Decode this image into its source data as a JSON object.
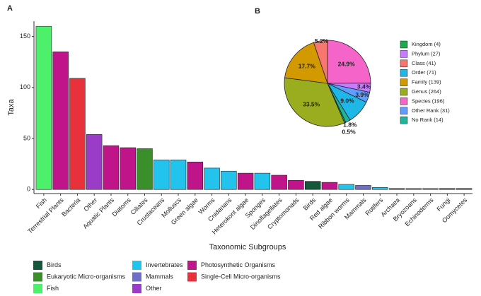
{
  "chart_data": [
    {
      "type": "bar",
      "panel_label": "A",
      "x_label": "Taxonomic Subgroups",
      "y_label": "Taxa",
      "categories": [
        "Fish",
        "Terrestrial Plants",
        "Bacteria",
        "Other",
        "Aquatic Plants",
        "Diatoms",
        "Ciliates",
        "Crustaceans",
        "Molluscs",
        "Green algae",
        "Worms",
        "Cnidarians",
        "Heterokont algae",
        "Sponges",
        "Dinoflagellates",
        "Cryptomonads",
        "Birds",
        "Red algae",
        "Ribbon worms",
        "Mammals",
        "Rotifers",
        "Archaea",
        "Bryozoans",
        "Echinoderms",
        "Fungi",
        "Oomycetes"
      ],
      "series": [
        {
          "name": "Birds",
          "color": "#14573a",
          "values": [
            null,
            null,
            null,
            null,
            null,
            null,
            null,
            null,
            null,
            null,
            null,
            null,
            null,
            null,
            null,
            null,
            8,
            null,
            null,
            null,
            null,
            null,
            null,
            null,
            null,
            null
          ]
        },
        {
          "name": "Eukaryotic Micro-organisms",
          "color": "#3a8f2a",
          "values": [
            null,
            null,
            null,
            null,
            null,
            null,
            40,
            null,
            null,
            null,
            null,
            null,
            null,
            null,
            null,
            null,
            null,
            null,
            null,
            null,
            null,
            null,
            null,
            null,
            null,
            null
          ]
        },
        {
          "name": "Fish",
          "color": "#4cf06a",
          "values": [
            160,
            null,
            null,
            null,
            null,
            null,
            null,
            null,
            null,
            null,
            null,
            null,
            null,
            null,
            null,
            null,
            null,
            null,
            null,
            null,
            null,
            null,
            null,
            null,
            null,
            null
          ]
        },
        {
          "name": "Invertebrates",
          "color": "#22c4ee",
          "values": [
            null,
            null,
            null,
            null,
            null,
            null,
            null,
            29,
            29,
            null,
            21,
            18,
            null,
            16,
            null,
            null,
            null,
            null,
            5,
            null,
            2,
            null,
            1,
            1,
            null,
            null
          ]
        },
        {
          "name": "Mammals",
          "color": "#6f6fc8",
          "values": [
            null,
            null,
            null,
            null,
            null,
            null,
            null,
            null,
            null,
            null,
            null,
            null,
            null,
            null,
            null,
            null,
            null,
            null,
            null,
            4,
            null,
            null,
            null,
            null,
            null,
            null
          ]
        },
        {
          "name": "Other",
          "color": "#9b3cc8",
          "values": [
            null,
            null,
            null,
            54,
            null,
            null,
            null,
            null,
            null,
            null,
            null,
            null,
            null,
            null,
            null,
            null,
            null,
            null,
            null,
            null,
            null,
            null,
            null,
            null,
            null,
            null
          ]
        },
        {
          "name": "Photosynthetic Organisms",
          "color": "#c0158a",
          "values": [
            null,
            135,
            null,
            null,
            43,
            41,
            null,
            null,
            null,
            27,
            null,
            null,
            16,
            null,
            14,
            9,
            null,
            7,
            null,
            null,
            null,
            null,
            null,
            null,
            1,
            1
          ]
        },
        {
          "name": "Single-Cell Micro-organisms",
          "color": "#e8313a",
          "values": [
            null,
            null,
            109,
            null,
            null,
            null,
            null,
            null,
            null,
            null,
            null,
            null,
            null,
            null,
            null,
            null,
            null,
            null,
            null,
            null,
            null,
            1,
            null,
            null,
            null,
            null
          ]
        }
      ],
      "ylim": [
        -4,
        165
      ],
      "yticks": [
        0,
        50,
        100,
        150
      ]
    },
    {
      "type": "pie",
      "panel_label": "B",
      "values": [
        24.9,
        3.4,
        3.9,
        9.0,
        1.8,
        0.5,
        33.5,
        17.7,
        5.2
      ],
      "value_labels": [
        "24.9%",
        "3.4%",
        "3.9%",
        "9.0%",
        "1.8%",
        "0.5%",
        "33.5%",
        "17.7%",
        "5.2%"
      ],
      "colors": [
        "#f564c8",
        "#c77cff",
        "#619cff",
        "#1fb6e8",
        "#1fb59a",
        "#1fa84f",
        "#9aad1f",
        "#d29a00",
        "#f8766d"
      ],
      "legend": [
        {
          "name": "Kingdom (4)",
          "color": "#1fa84f"
        },
        {
          "name": "Phylum (27)",
          "color": "#c77cff"
        },
        {
          "name": "Class (41)",
          "color": "#f8766d"
        },
        {
          "name": "Order (71)",
          "color": "#1fb6e8"
        },
        {
          "name": "Family (139)",
          "color": "#d29a00"
        },
        {
          "name": "Genus (264)",
          "color": "#9aad1f"
        },
        {
          "name": "Species (196)",
          "color": "#f564c8"
        },
        {
          "name": "Other Rank (31)",
          "color": "#619cff"
        },
        {
          "name": "No Rank (14)",
          "color": "#1fb59a"
        }
      ]
    }
  ]
}
